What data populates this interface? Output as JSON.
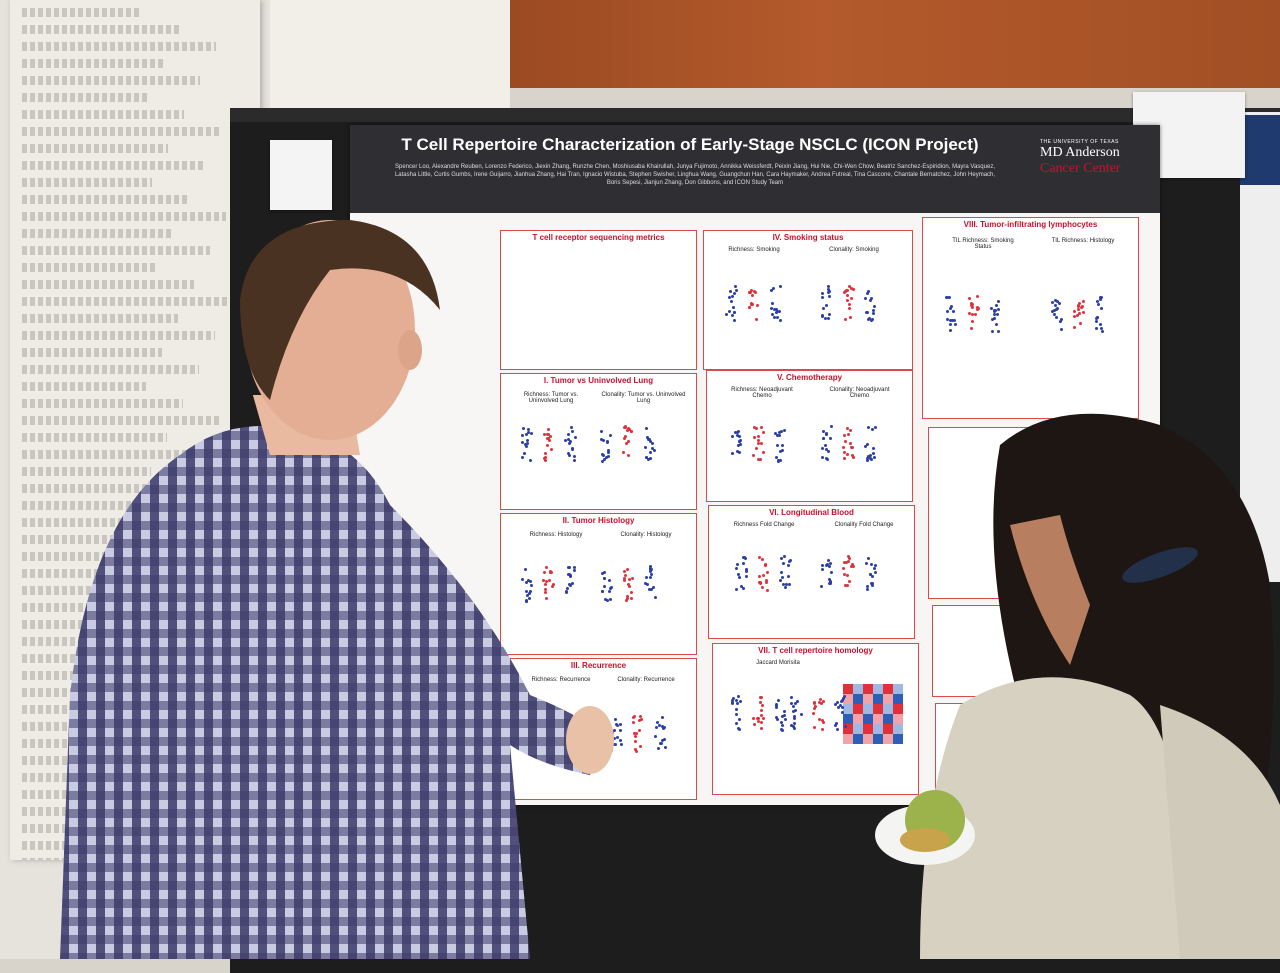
{
  "poster": {
    "title": "T Cell Repertoire Characterization of Early-Stage NSCLC (ICON Project)",
    "authors": "Spencer Loo, Alexandre Reuben, Lorenzo Federico, Jiexin Zhang, Runzhe Chen, Moshiusaba Khairullah, Junya Fujimoto, Annikka Weissferdt, Peixin Jiang, Hui Nie, Chi-Wen Chow, Beatriz Sanchez-Espiridion, Mayra Vasquez, Latasha Little, Curtis Gumbs, Irene Guijarro, Jianhua Zhang, Hai Tran, Ignacio Wistuba, Stephen Swisher, Linghua Wang, Guangchun Han, Cara Haymaker, Andrea Futreal, Tina Cascone, Chantale Bernatchez, John Heymach, Boris Sepesi, Jianjun Zhang, Don Gibbons, and ICON Study Team",
    "logo_top": "THE UNIVERSITY OF TEXAS",
    "logo_mid": "MD Anderson",
    "logo_bottom": "Cancer Center",
    "sections": [
      "T cell receptor sequencing metrics",
      "I. Tumor vs Uninvolved Lung",
      "II. Tumor Histology",
      "III. Recurrence",
      "IV. Smoking status",
      "V. Chemotherapy",
      "VI. Longitudinal Blood",
      "VII. T cell repertoire homology",
      "VIII. Tumor-infiltrating lymphocytes"
    ],
    "subtitles": {
      "tumor_rich": "Richness: Tumor vs. Uninvolved Lung",
      "tumor_clon": "Clonality: Tumor vs. Uninvolved Lung",
      "hist_rich": "Richness: Histology",
      "hist_clon": "Clonality: Histology",
      "rec_rich": "Richness: Recurrence",
      "rec_clon": "Clonality: Recurrence",
      "smk_rich": "Richness: Smoking",
      "smk_clon": "Clonality: Smoking",
      "chemo_rich": "Richness: Neoadjuvant Chemo",
      "chemo_clon": "Clonality: Neoadjuvant Chemo",
      "blood_rich": "Richness Fold Change",
      "blood_clon": "Clonality Fold Change",
      "homology": "Jaccard   Morisita",
      "til_smoke": "TIL Richness: Smoking Status",
      "til_hist": "TIL Richness: Histology"
    }
  },
  "colors": {
    "header": "#2f2f33",
    "accent_red": "#c8102e",
    "dot_blue": "#2b3fa8",
    "dot_red": "#e0313a",
    "shirt_dark": "#3c3a6a",
    "shirt_light": "#c9cbe2"
  }
}
